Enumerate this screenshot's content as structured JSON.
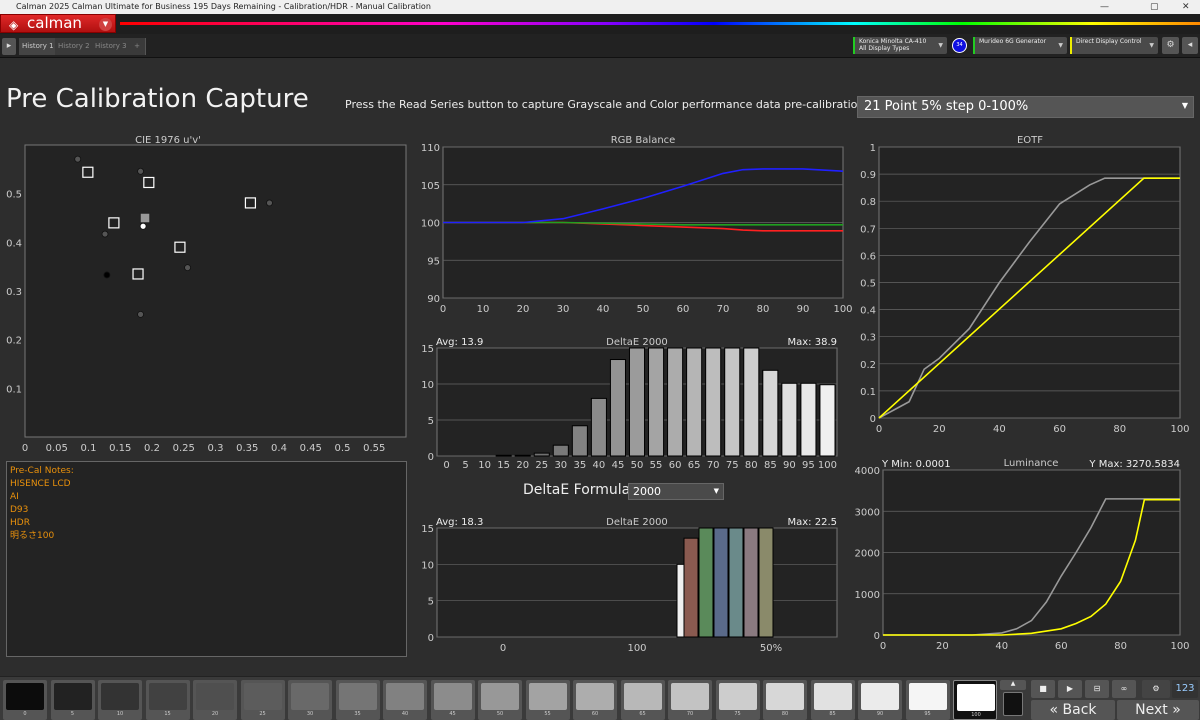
{
  "window": {
    "title": "Calman 2025 Calman Ultimate for Business 195 Days Remaining  - Calibration/HDR - Manual Calibration",
    "controls": [
      "—",
      "▢",
      "✕"
    ]
  },
  "header": {
    "logo": "calman",
    "accent": "#d42424"
  },
  "tabs": [
    {
      "label": "History 1",
      "active": true
    },
    {
      "label": "History 2"
    },
    {
      "label": "History 3"
    }
  ],
  "devices": [
    {
      "line1": "Konica Minolta CA-410",
      "line2": "All Display Types",
      "color": "#22cc22",
      "badge": "34"
    },
    {
      "line1": "Murideo 6G Generator",
      "line2": "",
      "color": "#22cc22"
    },
    {
      "line1": "Direct Display Control",
      "line2": "",
      "color": "#eeee00"
    }
  ],
  "main": {
    "title": "Pre Calibration Capture",
    "instructions": "Press the Read Series button to capture Grayscale and Color performance data pre-calibration.",
    "series_select": "21 Point 5% step 0-100%",
    "notes": {
      "heading": "Pre-Cal Notes:",
      "lines": [
        "",
        "HISENCE LCD",
        "AI",
        "D93",
        "HDR",
        "",
        "明るさ100"
      ]
    },
    "deltae_formula": {
      "label": "DeltaE Formula",
      "value": "2000"
    }
  },
  "chart_data": [
    {
      "id": "cie",
      "type": "scatter",
      "title": "CIE 1976 u'v'",
      "xlim": [
        0,
        0.6
      ],
      "ylim": [
        0,
        0.6
      ],
      "xticks": [
        0,
        0.05,
        0.1,
        0.15,
        0.2,
        0.25,
        0.3,
        0.35,
        0.4,
        0.45,
        0.5,
        0.55
      ],
      "yticks": [
        0.1,
        0.2,
        0.3,
        0.4,
        0.5
      ],
      "targets": [
        [
          0.099,
          0.544
        ],
        [
          0.195,
          0.523
        ],
        [
          0.14,
          0.44
        ],
        [
          0.189,
          0.45
        ],
        [
          0.178,
          0.335
        ],
        [
          0.244,
          0.39
        ],
        [
          0.355,
          0.481
        ]
      ],
      "measured": [
        [
          0.083,
          0.571
        ],
        [
          0.182,
          0.546
        ],
        [
          0.126,
          0.417
        ],
        [
          0.256,
          0.348
        ],
        [
          0.182,
          0.252
        ],
        [
          0.385,
          0.481
        ],
        [
          0.129,
          0.333
        ],
        [
          0.186,
          0.433
        ]
      ]
    },
    {
      "id": "rgb",
      "type": "line",
      "title": "RGB Balance",
      "xlim": [
        0,
        100
      ],
      "ylim": [
        90,
        110
      ],
      "xticks": [
        0,
        10,
        20,
        30,
        40,
        50,
        60,
        70,
        80,
        90,
        100
      ],
      "yticks": [
        90,
        95,
        100,
        105,
        110
      ],
      "x": [
        0,
        10,
        20,
        30,
        40,
        50,
        60,
        70,
        75,
        80,
        90,
        100
      ],
      "series": [
        {
          "color": "#ff2020",
          "values": [
            100,
            100,
            100,
            100,
            99.8,
            99.6,
            99.4,
            99.2,
            99,
            98.9,
            98.9,
            98.9
          ]
        },
        {
          "color": "#20a020",
          "values": [
            100,
            100,
            100,
            100,
            99.9,
            99.8,
            99.7,
            99.7,
            99.7,
            99.7,
            99.7,
            99.7
          ]
        },
        {
          "color": "#2020ff",
          "values": [
            100,
            100,
            100,
            100.5,
            101.8,
            103.2,
            104.8,
            106.5,
            107,
            107.1,
            107.1,
            106.8
          ]
        }
      ]
    },
    {
      "id": "de1",
      "type": "bar",
      "title": "DeltaE 2000",
      "avg": "Avg: 13.9",
      "max": "Max: 38.9",
      "ylim": [
        0,
        15
      ],
      "yticks": [
        0,
        5,
        10,
        15
      ],
      "categories": [
        "0",
        "5",
        "10",
        "15",
        "20",
        "25",
        "30",
        "35",
        "40",
        "45",
        "50",
        "55",
        "60",
        "65",
        "70",
        "75",
        "80",
        "85",
        "90",
        "95",
        "100"
      ],
      "values": [
        0,
        0,
        0,
        0.1,
        0.1,
        0.4,
        1.5,
        4.2,
        8,
        13.4,
        15,
        15,
        15,
        15,
        15,
        15,
        15,
        11.9,
        10.1,
        10.1,
        9.9
      ]
    },
    {
      "id": "de2",
      "type": "bar",
      "title": "DeltaE 2000",
      "avg": "Avg: 18.3",
      "max": "Max: 22.5",
      "ylim": [
        0,
        15
      ],
      "yticks": [
        0,
        5,
        10,
        15
      ],
      "xlabels": [
        "0",
        "100",
        "50%"
      ],
      "values": [
        10,
        13.6,
        15,
        15,
        15,
        15,
        15
      ],
      "colors": [
        "#f0f0f0",
        "#8a5a50",
        "#5a8a5a",
        "#5a6a8a",
        "#6a8a8a",
        "#8a7a80",
        "#8a8a6a"
      ]
    },
    {
      "id": "eotf",
      "type": "line",
      "title": "EOTF",
      "xlim": [
        0,
        100
      ],
      "ylim": [
        0,
        1
      ],
      "xticks": [
        0,
        20,
        40,
        60,
        80,
        100
      ],
      "yticks": [
        0,
        0.1,
        0.2,
        0.3,
        0.4,
        0.5,
        0.6,
        0.7,
        0.8,
        0.9,
        1
      ],
      "series": [
        {
          "color": "#999999",
          "x": [
            0,
            5,
            10,
            15,
            20,
            30,
            40,
            50,
            60,
            70,
            75,
            100
          ],
          "values": [
            0,
            0.03,
            0.06,
            0.18,
            0.22,
            0.33,
            0.5,
            0.65,
            0.79,
            0.86,
            0.885,
            0.885
          ]
        },
        {
          "color": "#ffff00",
          "x": [
            0,
            88,
            100
          ],
          "values": [
            0,
            0.885,
            0.885
          ]
        }
      ]
    },
    {
      "id": "lum",
      "type": "line",
      "title": "Luminance",
      "ymin": "Y Min: 0.0001",
      "ymax": "Y Max: 3270.5834",
      "xlim": [
        0,
        100
      ],
      "ylim": [
        0,
        4000
      ],
      "xticks": [
        0,
        20,
        40,
        60,
        80,
        100
      ],
      "yticks": [
        0,
        1000,
        2000,
        3000,
        4000
      ],
      "series": [
        {
          "color": "#999999",
          "x": [
            0,
            30,
            40,
            45,
            50,
            55,
            60,
            65,
            70,
            75,
            100
          ],
          "values": [
            0,
            0,
            50,
            150,
            350,
            800,
            1430,
            2000,
            2600,
            3300,
            3300
          ]
        },
        {
          "color": "#ffff00",
          "x": [
            0,
            40,
            50,
            60,
            65,
            70,
            75,
            80,
            85,
            88,
            100
          ],
          "values": [
            0,
            0,
            40,
            150,
            280,
            450,
            750,
            1300,
            2300,
            3280,
            3280
          ]
        }
      ]
    }
  ],
  "swatches": [
    "0",
    "5",
    "10",
    "15",
    "20",
    "25",
    "30",
    "35",
    "40",
    "45",
    "50",
    "55",
    "60",
    "65",
    "70",
    "75",
    "80",
    "85",
    "90",
    "95",
    "100"
  ],
  "swatch_selected": "100",
  "nav": {
    "back": "Back",
    "next": "Next",
    "counter": "123"
  }
}
